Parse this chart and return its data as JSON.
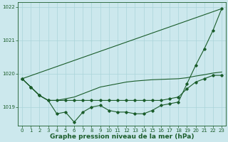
{
  "title": "Graphe pression niveau de la mer (hPa)",
  "xlabel": "Graphe pression niveau de la mer (hPa)",
  "background_color": "#cce8ed",
  "grid_color": "#aad4da",
  "line_color": "#1a5c2a",
  "x": [
    0,
    1,
    2,
    3,
    4,
    5,
    6,
    7,
    8,
    9,
    10,
    11,
    12,
    13,
    14,
    15,
    16,
    17,
    18,
    19,
    20,
    21,
    22,
    23
  ],
  "line_zigzag": [
    1019.85,
    1019.6,
    1019.35,
    1019.2,
    1018.8,
    1018.85,
    1018.55,
    1018.85,
    1019.0,
    1019.05,
    1018.9,
    1018.85,
    1018.85,
    1018.8,
    1018.8,
    1018.9,
    1019.05,
    1019.1,
    1019.15,
    1019.7,
    1020.25,
    1020.75,
    1021.3,
    1021.95
  ],
  "line_flat": [
    1019.85,
    1019.6,
    1019.35,
    1019.2,
    1019.2,
    1019.2,
    1019.2,
    1019.2,
    1019.2,
    1019.2,
    1019.2,
    1019.2,
    1019.2,
    1019.2,
    1019.2,
    1019.2,
    1019.2,
    1019.25,
    1019.3,
    1019.55,
    1019.75,
    1019.85,
    1019.95,
    1019.95
  ],
  "line_gentle": [
    1019.85,
    1019.6,
    1019.35,
    1019.2,
    1019.2,
    1019.25,
    1019.3,
    1019.4,
    1019.5,
    1019.6,
    1019.65,
    1019.7,
    1019.75,
    1019.78,
    1019.8,
    1019.82,
    1019.83,
    1019.84,
    1019.85,
    1019.88,
    1019.93,
    1019.97,
    1020.02,
    1020.05
  ],
  "line_diagonal": [
    1019.85,
    null,
    null,
    null,
    null,
    null,
    null,
    null,
    null,
    null,
    null,
    null,
    null,
    null,
    null,
    null,
    null,
    null,
    null,
    null,
    null,
    null,
    null,
    1021.95
  ],
  "ylim": [
    1018.45,
    1022.15
  ],
  "yticks": [
    1019,
    1020,
    1021,
    1022
  ],
  "xticks": [
    0,
    1,
    2,
    3,
    4,
    5,
    6,
    7,
    8,
    9,
    10,
    11,
    12,
    13,
    14,
    15,
    16,
    17,
    18,
    19,
    20,
    21,
    22,
    23
  ],
  "tick_fontsize": 5.0,
  "xlabel_fontsize": 6.5,
  "marker": "D",
  "markersize": 1.8,
  "linewidth": 0.8
}
